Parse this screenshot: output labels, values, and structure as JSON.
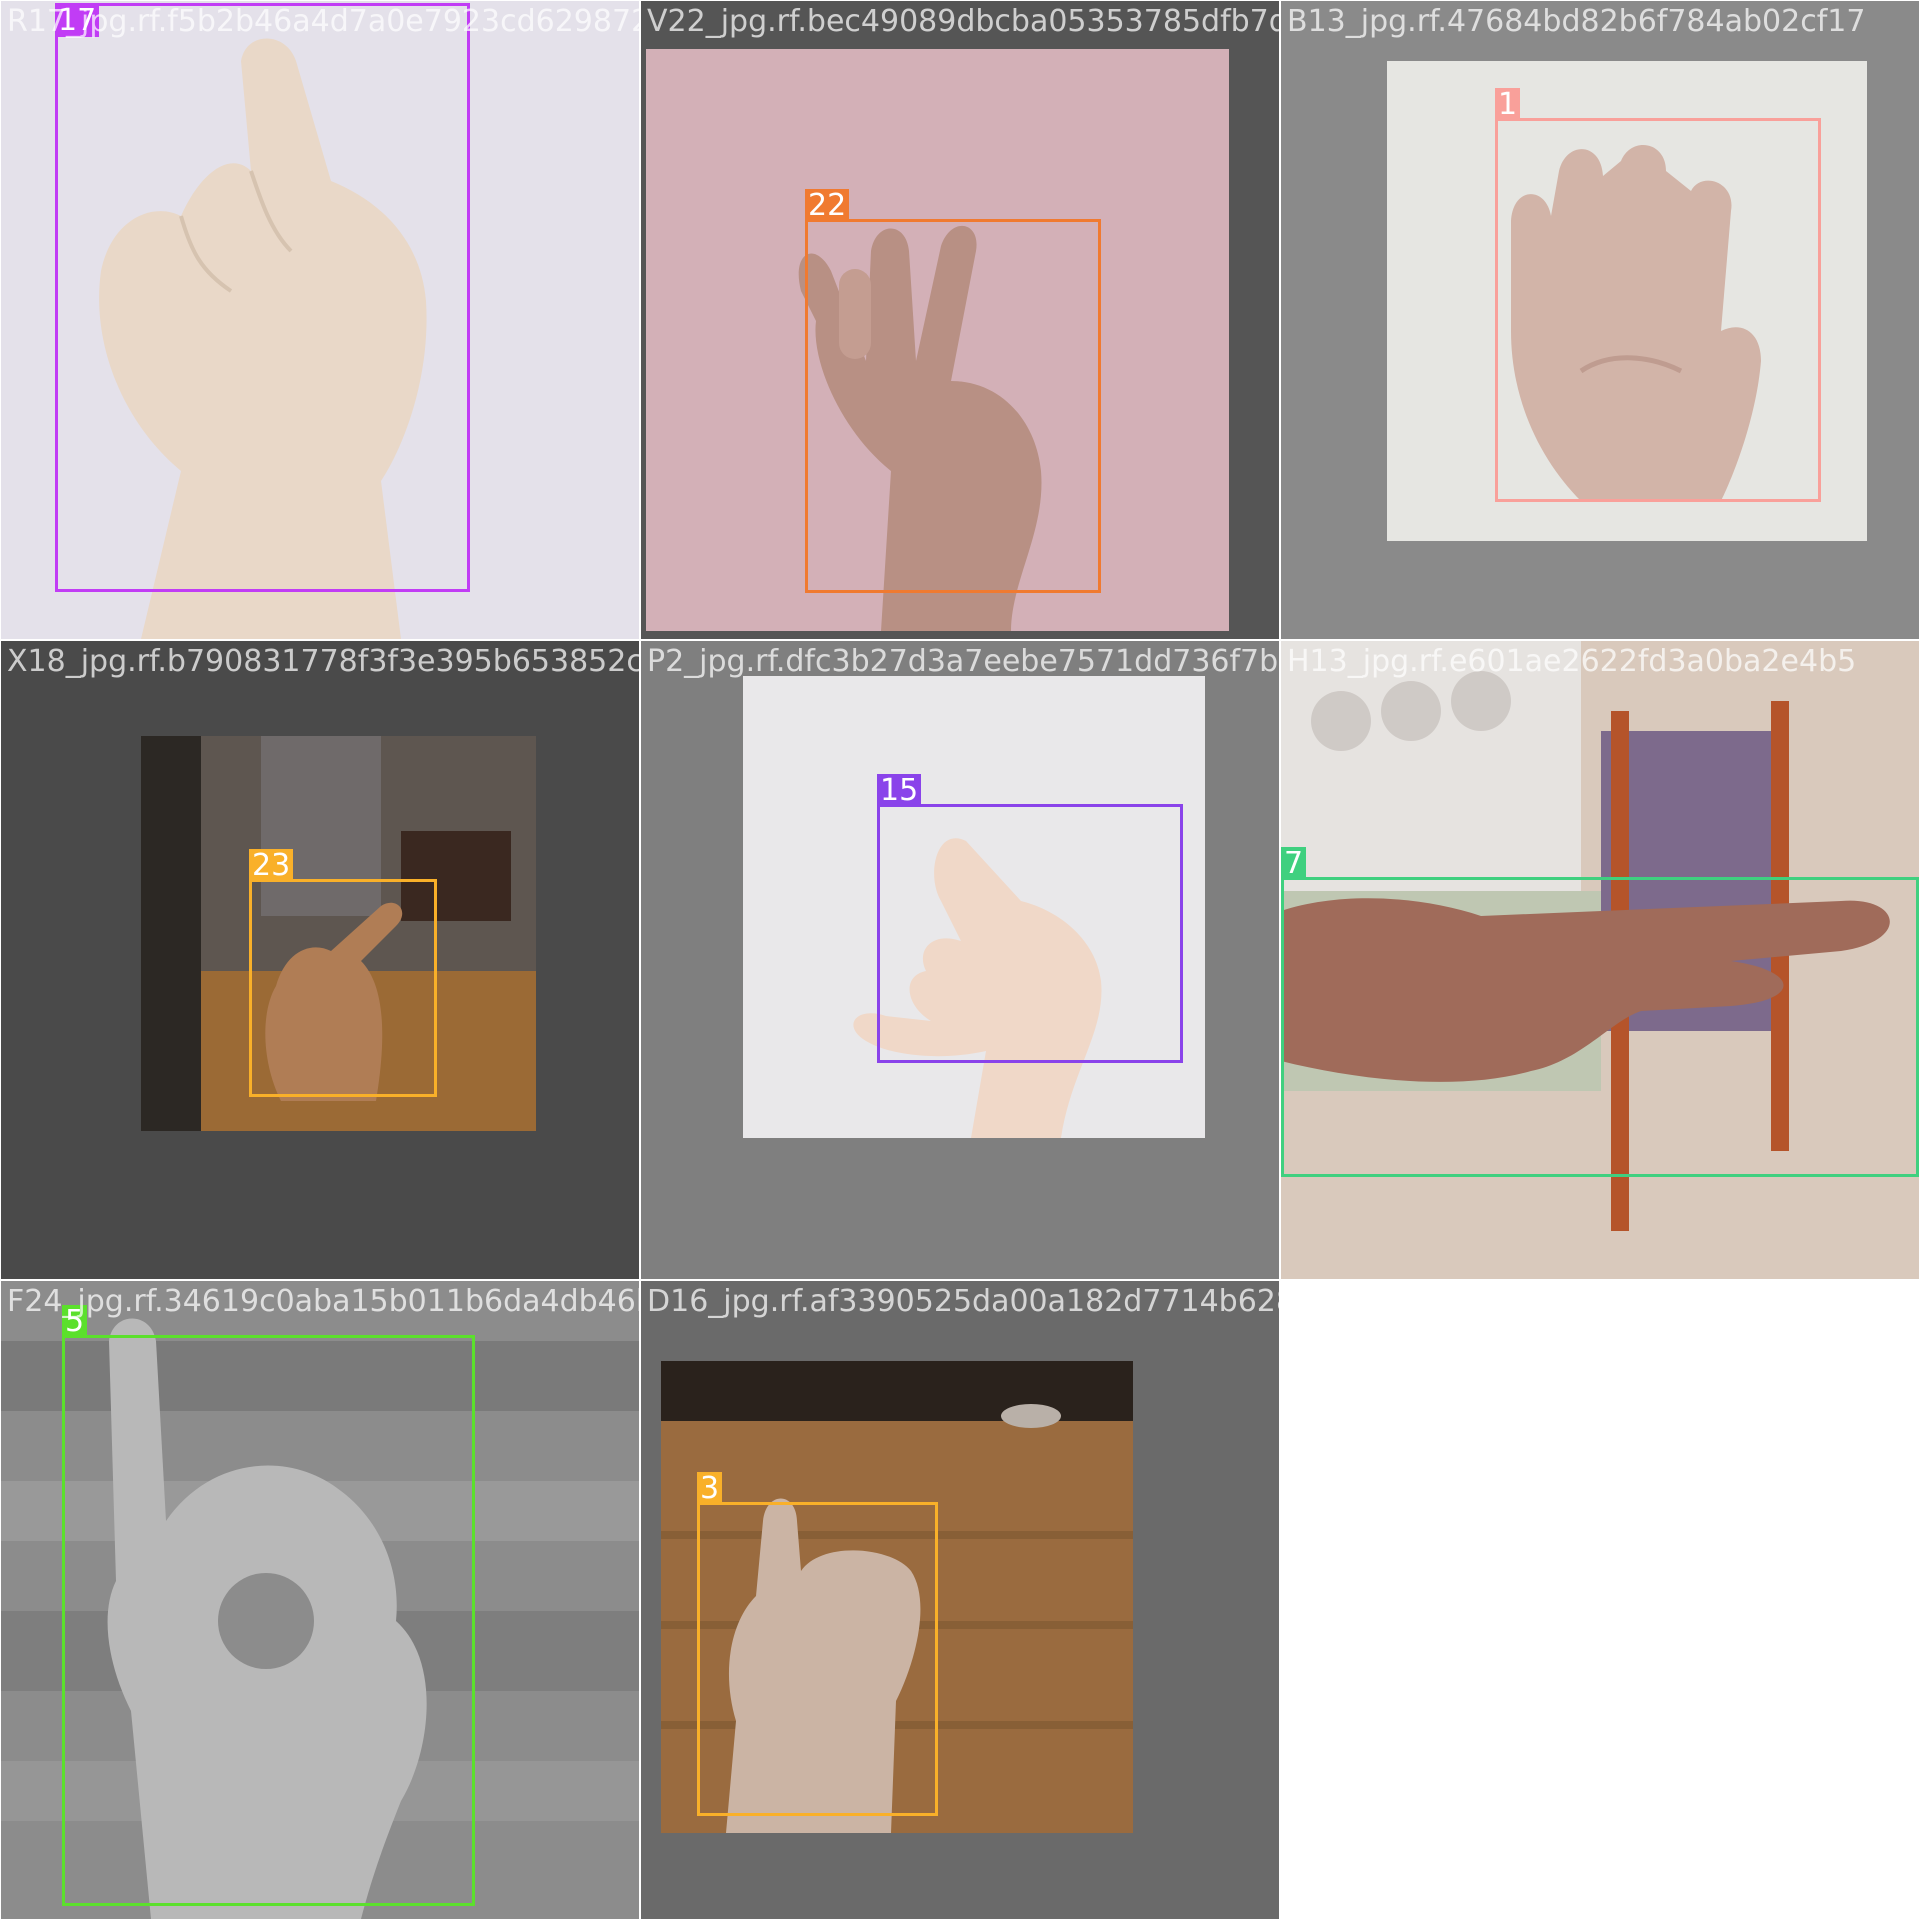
{
  "tiles": [
    {
      "filename": "R17_jpg.rf.f5b2b46a4d7a0e7923cd6298721f07",
      "box": {
        "label": "17",
        "color": "#c13cf5"
      }
    },
    {
      "filename": "V22_jpg.rf.bec49089dbcba05353785dfb7d6e9",
      "box": {
        "label": "22",
        "color": "#f07a30"
      }
    },
    {
      "filename": "B13_jpg.rf.47684bd82b6f784ab02cf17",
      "box": {
        "label": "1",
        "color": "#f9a09a"
      }
    },
    {
      "filename": "X18_jpg.rf.b790831778f3f3e395b653852c670",
      "box": {
        "label": "23",
        "color": "#f9b029"
      }
    },
    {
      "filename": "P2_jpg.rf.dfc3b27d3a7eebe7571dd736f7bdb93",
      "box": {
        "label": "15",
        "color": "#8a43ea"
      }
    },
    {
      "filename": "H13_jpg.rf.e601ae2622fd3a0ba2e4b5",
      "box": {
        "label": "7",
        "color": "#3fd07f"
      }
    },
    {
      "filename": "F24_jpg.rf.34619c0aba15b011b6da4db46b99",
      "box": {
        "label": "5",
        "color": "#5be02c"
      }
    },
    {
      "filename": "D16_jpg.rf.af3390525da00a182d7714b628b21",
      "box": {
        "label": "3",
        "color": "#f9b029"
      }
    }
  ]
}
